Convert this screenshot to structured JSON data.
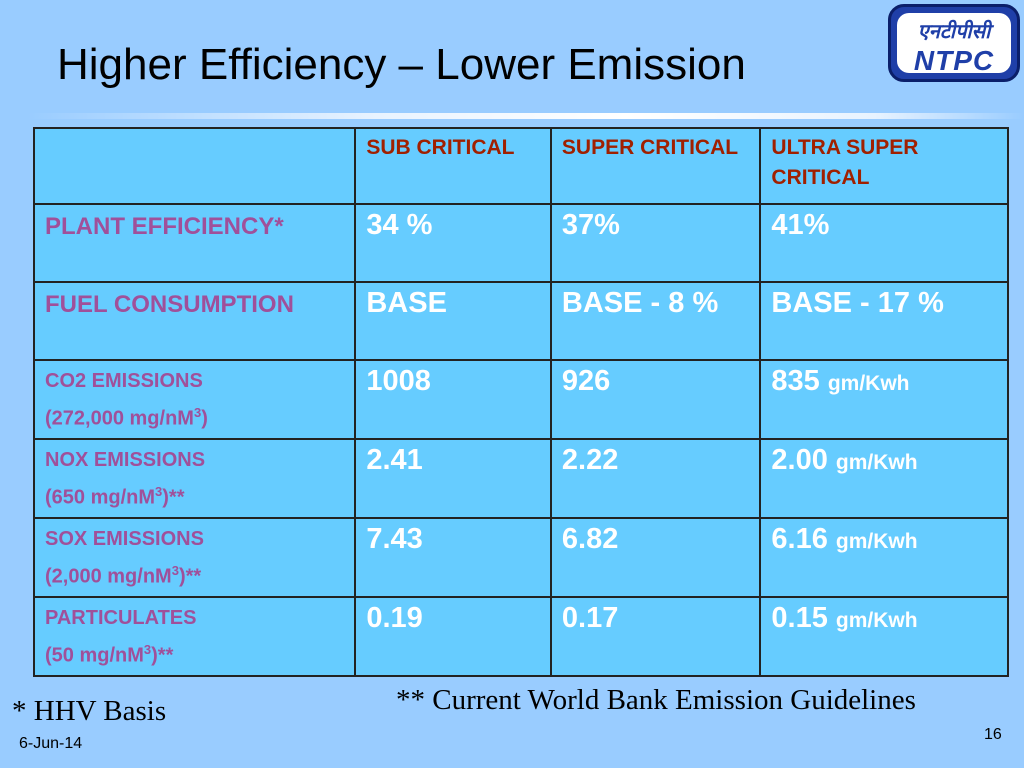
{
  "slide": {
    "title": "Higher Efficiency – Lower Emission",
    "logo": {
      "hindi_text": "एनटीपीसी",
      "text": "NTPC"
    },
    "table": {
      "headers": [
        "",
        "SUB CRITICAL",
        "SUPER CRITICAL",
        "ULTRA SUPER CRITICAL"
      ],
      "rows": [
        {
          "label": "PLANT EFFICIENCY*",
          "sublabel_prefix": "",
          "sublabel_sup": "",
          "sublabel_suffix": "",
          "values": [
            "34 %",
            "37%",
            "41%"
          ],
          "unit": ""
        },
        {
          "label": "FUEL CONSUMPTION",
          "sublabel_prefix": "",
          "sublabel_sup": "",
          "sublabel_suffix": "",
          "values": [
            "BASE",
            "BASE - 8 %",
            "BASE - 17 %"
          ],
          "unit": ""
        },
        {
          "label": "CO2 EMISSIONS",
          "sublabel_prefix": "(272,000 mg/nM",
          "sublabel_sup": "3",
          "sublabel_suffix": ")",
          "values": [
            "1008",
            "926",
            "835"
          ],
          "unit": "gm/Kwh"
        },
        {
          "label": "NOX EMISSIONS",
          "sublabel_prefix": "(650 mg/nM",
          "sublabel_sup": "3",
          "sublabel_suffix": ")**",
          "values": [
            "2.41",
            "2.22",
            "2.00"
          ],
          "unit": "gm/Kwh"
        },
        {
          "label": "SOX EMISSIONS",
          "sublabel_prefix": "(2,000 mg/nM",
          "sublabel_sup": "3",
          "sublabel_suffix": ")**",
          "values": [
            "7.43",
            "6.82",
            "6.16"
          ],
          "unit": "gm/Kwh"
        },
        {
          "label": "PARTICULATES",
          "sublabel_prefix": "(50 mg/nM",
          "sublabel_sup": "3",
          "sublabel_suffix": ")**",
          "values": [
            "0.19",
            "0.17",
            "0.15"
          ],
          "unit": "gm/Kwh"
        }
      ]
    },
    "footnote_left": "* HHV Basis",
    "footnote_right": "** Current World Bank Emission Guidelines",
    "date": "6-Jun-14",
    "page_number": "16"
  }
}
